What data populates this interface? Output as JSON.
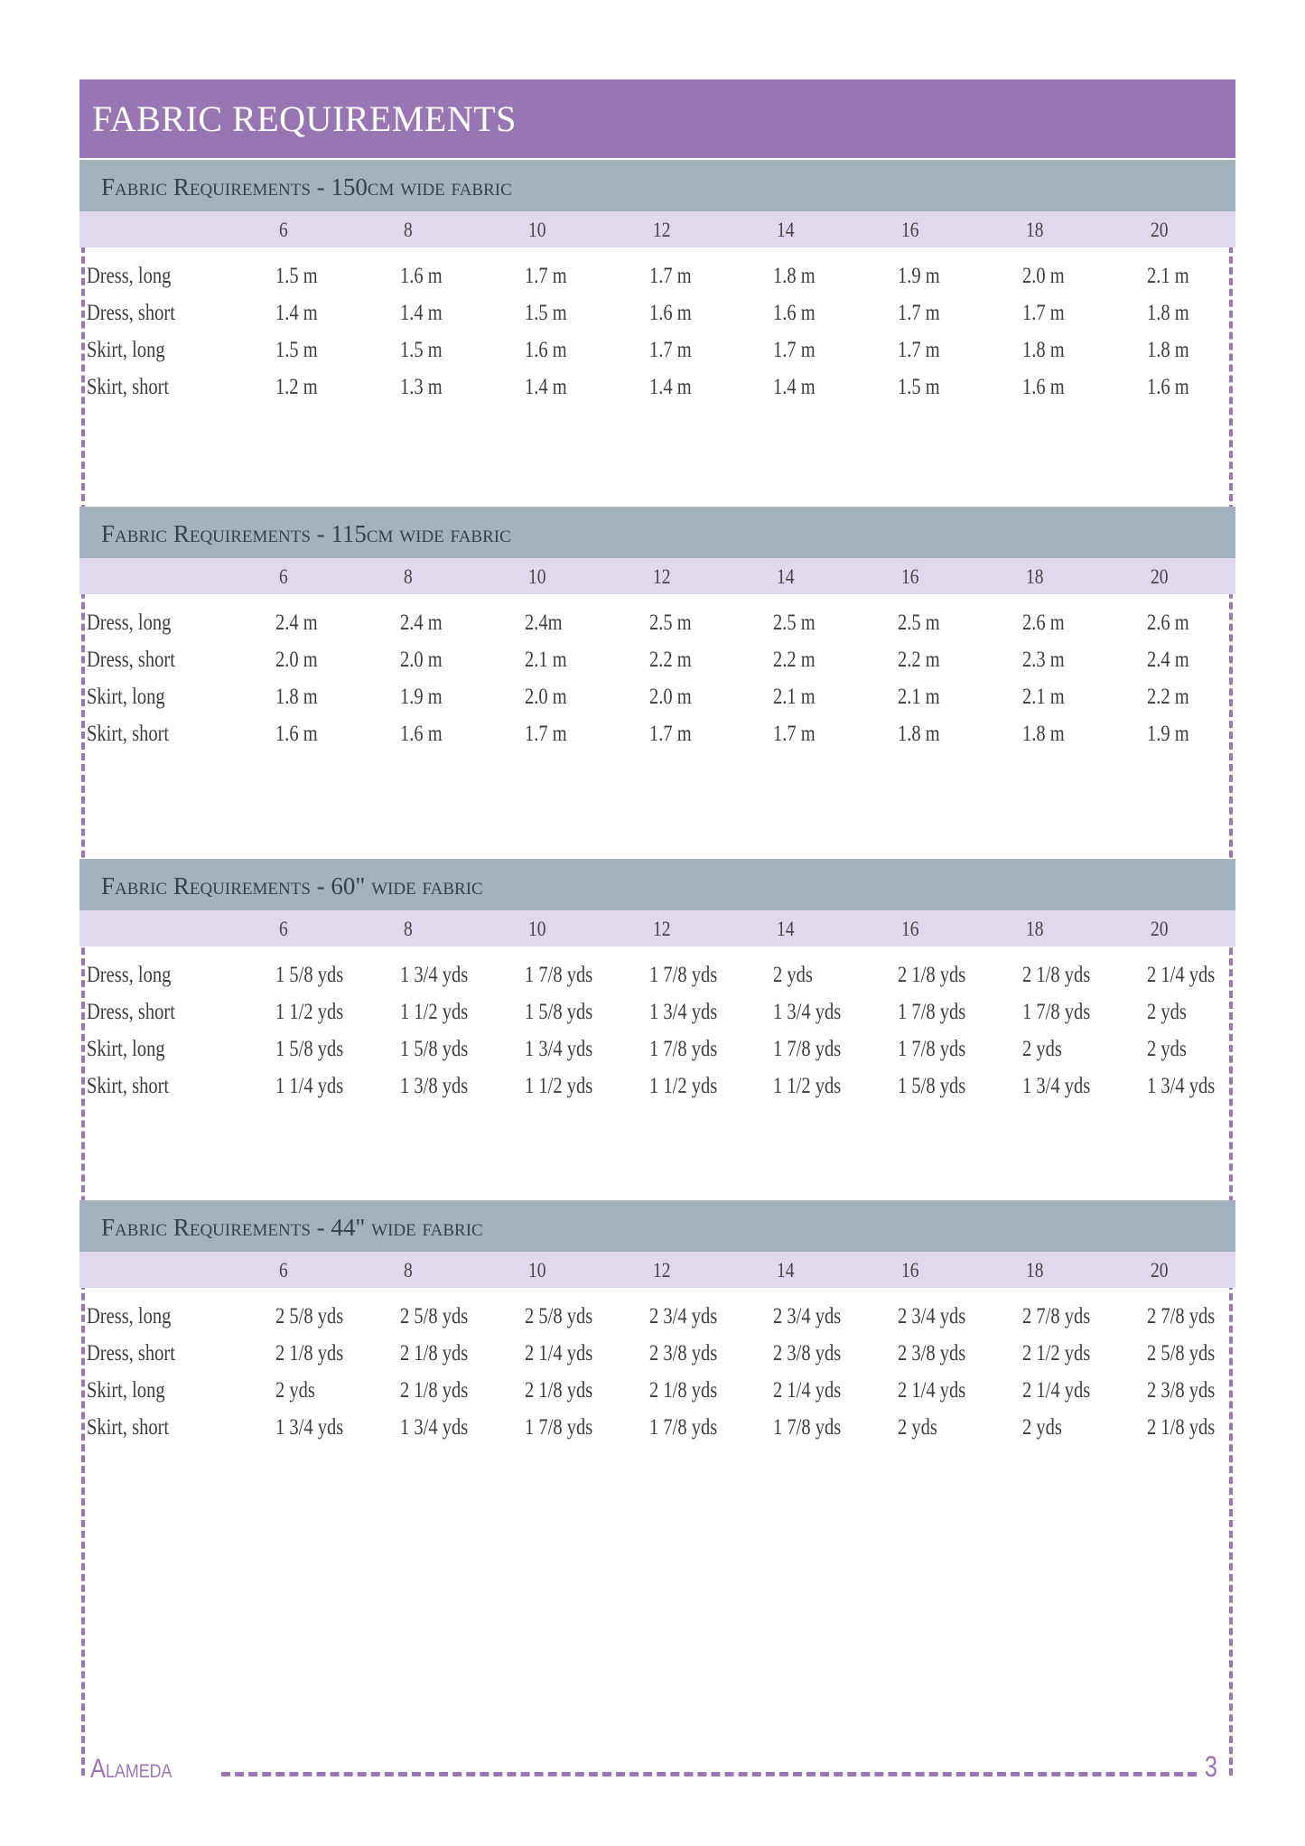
{
  "title": "FABRIC REQUIREMENTS",
  "sizes": [
    "6",
    "8",
    "10",
    "12",
    "14",
    "16",
    "18",
    "20"
  ],
  "sections": [
    {
      "title": "Fabric Requirements - 150cm wide fabric",
      "rows": [
        {
          "label": "Dress, long",
          "values": [
            "1.5 m",
            "1.6 m",
            "1.7 m",
            "1.7 m",
            "1.8 m",
            "1.9 m",
            "2.0 m",
            "2.1 m"
          ]
        },
        {
          "label": "Dress, short",
          "values": [
            "1.4 m",
            "1.4 m",
            "1.5 m",
            "1.6 m",
            "1.6 m",
            "1.7 m",
            "1.7 m",
            "1.8 m"
          ]
        },
        {
          "label": "Skirt, long",
          "values": [
            "1.5 m",
            "1.5 m",
            "1.6 m",
            "1.7 m",
            "1.7 m",
            "1.7 m",
            "1.8 m",
            "1.8 m"
          ]
        },
        {
          "label": "Skirt, short",
          "values": [
            "1.2 m",
            "1.3 m",
            "1.4 m",
            "1.4 m",
            "1.4 m",
            "1.5 m",
            "1.6 m",
            "1.6 m"
          ]
        }
      ]
    },
    {
      "title": "Fabric Requirements - 115cm wide fabric",
      "rows": [
        {
          "label": "Dress, long",
          "values": [
            "2.4 m",
            "2.4 m",
            "2.4m",
            "2.5 m",
            "2.5 m",
            "2.5 m",
            "2.6 m",
            "2.6 m"
          ]
        },
        {
          "label": "Dress, short",
          "values": [
            "2.0 m",
            "2.0 m",
            "2.1 m",
            "2.2 m",
            "2.2 m",
            "2.2 m",
            "2.3 m",
            "2.4 m"
          ]
        },
        {
          "label": "Skirt, long",
          "values": [
            "1.8 m",
            "1.9 m",
            "2.0 m",
            "2.0 m",
            "2.1 m",
            "2.1 m",
            "2.1 m",
            "2.2 m"
          ]
        },
        {
          "label": "Skirt, short",
          "values": [
            "1.6 m",
            "1.6 m",
            "1.7 m",
            "1.7 m",
            "1.7 m",
            "1.8 m",
            "1.8 m",
            "1.9 m"
          ]
        }
      ]
    },
    {
      "title": "Fabric Requirements - 60\" wide fabric",
      "rows": [
        {
          "label": "Dress, long",
          "values": [
            "1 5/8 yds",
            "1 3/4 yds",
            "1 7/8 yds",
            "1 7/8 yds",
            "2 yds",
            "2 1/8 yds",
            "2 1/8 yds",
            "2 1/4 yds"
          ]
        },
        {
          "label": "Dress, short",
          "values": [
            "1 1/2 yds",
            "1 1/2 yds",
            "1 5/8 yds",
            "1 3/4 yds",
            "1 3/4 yds",
            "1 7/8 yds",
            "1 7/8 yds",
            "2 yds"
          ]
        },
        {
          "label": "Skirt, long",
          "values": [
            "1 5/8 yds",
            "1 5/8 yds",
            "1 3/4 yds",
            "1 7/8 yds",
            "1 7/8 yds",
            "1 7/8 yds",
            "2 yds",
            "2 yds"
          ]
        },
        {
          "label": "Skirt, short",
          "values": [
            "1 1/4 yds",
            "1 3/8 yds",
            "1 1/2 yds",
            "1 1/2 yds",
            "1 1/2 yds",
            "1 5/8 yds",
            "1 3/4 yds",
            "1 3/4 yds"
          ]
        }
      ]
    },
    {
      "title": "Fabric Requirements - 44\" wide fabric",
      "rows": [
        {
          "label": "Dress, long",
          "values": [
            "2 5/8 yds",
            "2 5/8 yds",
            "2 5/8 yds",
            "2 3/4 yds",
            "2 3/4 yds",
            "2 3/4 yds",
            "2 7/8 yds",
            "2 7/8 yds"
          ]
        },
        {
          "label": "Dress, short",
          "values": [
            "2 1/8 yds",
            "2 1/8 yds",
            "2 1/4 yds",
            "2 3/8 yds",
            "2 3/8 yds",
            "2 3/8 yds",
            "2 1/2 yds",
            "2 5/8 yds"
          ]
        },
        {
          "label": "Skirt, long",
          "values": [
            "2 yds",
            "2 1/8 yds",
            "2 1/8 yds",
            "2 1/8 yds",
            "2 1/4 yds",
            "2 1/4 yds",
            "2 1/4 yds",
            "2 3/8 yds"
          ]
        },
        {
          "label": "Skirt, short",
          "values": [
            "1 3/4 yds",
            "1 3/4 yds",
            "1 7/8 yds",
            "1 7/8 yds",
            "1 7/8 yds",
            "2 yds",
            "2 yds",
            "2 1/8 yds"
          ]
        }
      ]
    }
  ],
  "footer": {
    "brand": "Alameda",
    "page": "3"
  },
  "colors": {
    "accent": "#9975b4",
    "section_header": "#a4b2be",
    "size_row": "#e0d8ec"
  }
}
